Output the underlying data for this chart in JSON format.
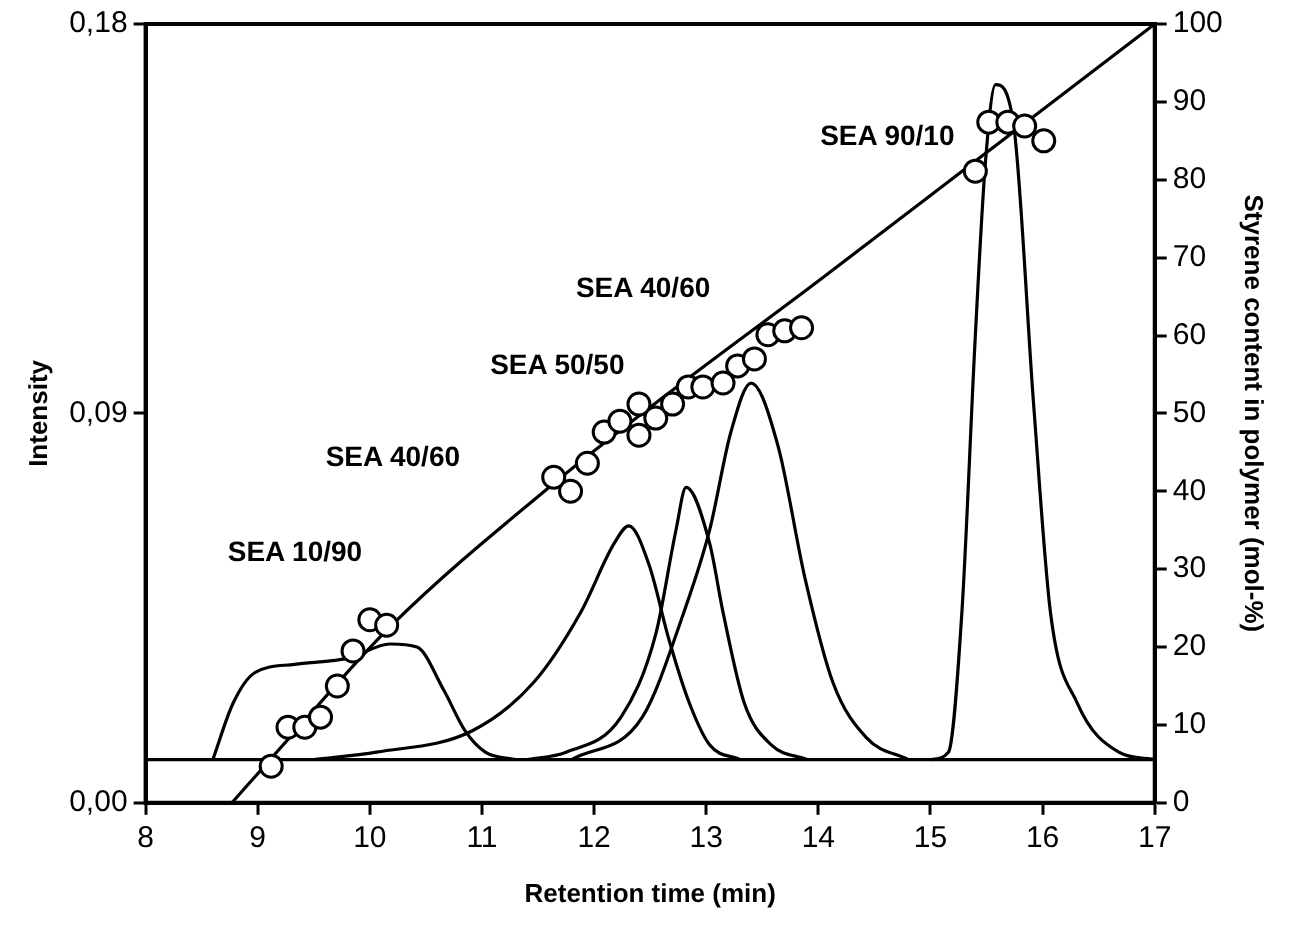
{
  "chart_data": {
    "type": "line",
    "xlabel": "Retention time (min)",
    "ylabel": "Intensity",
    "y2label": "Styrene content in polymer (mol-%)",
    "xlim": [
      8,
      17
    ],
    "xticks": [
      8,
      9,
      10,
      11,
      12,
      13,
      14,
      15,
      16,
      17
    ],
    "ylim": [
      0,
      0.18
    ],
    "yticks": [
      {
        "value": 0,
        "label": "0,00"
      },
      {
        "value": 0.09,
        "label": "0,09"
      },
      {
        "value": 0.18,
        "label": "0,18"
      }
    ],
    "y2lim": [
      0,
      100
    ],
    "y2ticks": [
      0,
      10,
      20,
      30,
      40,
      50,
      60,
      70,
      80,
      90,
      100
    ],
    "grid": false,
    "legend": false,
    "ref_lines": [
      {
        "axis": "y",
        "value": 0.01,
        "color": "#000000"
      }
    ],
    "annotations": [
      "SEA 10/90",
      "SEA 40/60",
      "SEA 50/50",
      "SEA 40/60",
      "SEA 90/10"
    ],
    "series": [
      {
        "type": "line",
        "color": "#000000",
        "marker": "none",
        "x": [
          8.6,
          8.78,
          8.97,
          9.33,
          9.82,
          10.18,
          10.42,
          10.66,
          10.85,
          11.03,
          11.3
        ],
        "values": [
          0.01,
          0.023,
          0.03,
          0.032,
          0.0335,
          0.0367,
          0.036,
          0.026,
          0.0166,
          0.0117,
          0.01
        ]
      },
      {
        "type": "line",
        "color": "#000000",
        "marker": "none",
        "x": [
          9.5,
          10.06,
          10.91,
          11.46,
          11.88,
          12.18,
          12.31,
          12.49,
          12.67,
          12.85,
          13.03,
          13.3
        ],
        "values": [
          0.01,
          0.0117,
          0.0166,
          0.0278,
          0.044,
          0.06,
          0.064,
          0.055,
          0.0375,
          0.023,
          0.0134,
          0.01
        ]
      },
      {
        "type": "line",
        "color": "#000000",
        "marker": "none",
        "x": [
          11.4,
          11.75,
          12.24,
          12.55,
          12.73,
          12.82,
          13.03,
          13.15,
          13.34,
          13.58,
          13.9
        ],
        "values": [
          0.01,
          0.0117,
          0.0198,
          0.039,
          0.063,
          0.0729,
          0.06,
          0.044,
          0.023,
          0.0134,
          0.01
        ]
      },
      {
        "type": "line",
        "color": "#000000",
        "marker": "none",
        "x": [
          11.8,
          12.43,
          12.8,
          13.03,
          13.22,
          13.4,
          13.64,
          13.88,
          14.13,
          14.43,
          14.8
        ],
        "values": [
          0.01,
          0.0198,
          0.044,
          0.063,
          0.0857,
          0.097,
          0.0825,
          0.052,
          0.0278,
          0.015,
          0.01
        ]
      },
      {
        "type": "line",
        "color": "#000000",
        "marker": "none",
        "x": [
          15.0,
          15.16,
          15.28,
          15.4,
          15.49,
          15.58,
          15.74,
          15.92,
          16.07,
          16.31,
          16.68,
          17.0
        ],
        "values": [
          0.01,
          0.0117,
          0.044,
          0.108,
          0.148,
          0.166,
          0.157,
          0.092,
          0.044,
          0.023,
          0.0117,
          0.01
        ]
      },
      {
        "type": "line",
        "axis": "y2",
        "color": "#000000",
        "marker": "none",
        "x": [
          8.77,
          9.2,
          10.18,
          11.64,
          12.61,
          14.0,
          15.5,
          17.0
        ],
        "values": [
          0,
          7,
          22.6,
          41,
          52,
          67,
          83.5,
          100
        ]
      },
      {
        "type": "scatter",
        "axis": "y2",
        "color": "#000000",
        "marker": "circle",
        "x": [
          9.12,
          9.27,
          9.42,
          9.56,
          9.71,
          9.85,
          10.0,
          10.15,
          11.64,
          11.79,
          11.94,
          12.09,
          12.23,
          12.4,
          12.4,
          12.55,
          12.7,
          12.84,
          12.97,
          13.15,
          13.28,
          13.43,
          13.55,
          13.7,
          13.85,
          15.4,
          15.52,
          15.69,
          15.84,
          16.01
        ],
        "values": [
          4.7,
          9.7,
          9.7,
          11.0,
          15.0,
          19.5,
          23.5,
          22.8,
          41.8,
          40.0,
          43.6,
          47.6,
          49.0,
          51.2,
          47.2,
          49.4,
          51.2,
          53.4,
          53.4,
          53.9,
          56.1,
          57.0,
          60.1,
          60.6,
          61.0,
          81.1,
          87.4,
          87.4,
          86.9,
          85.0
        ]
      }
    ]
  }
}
